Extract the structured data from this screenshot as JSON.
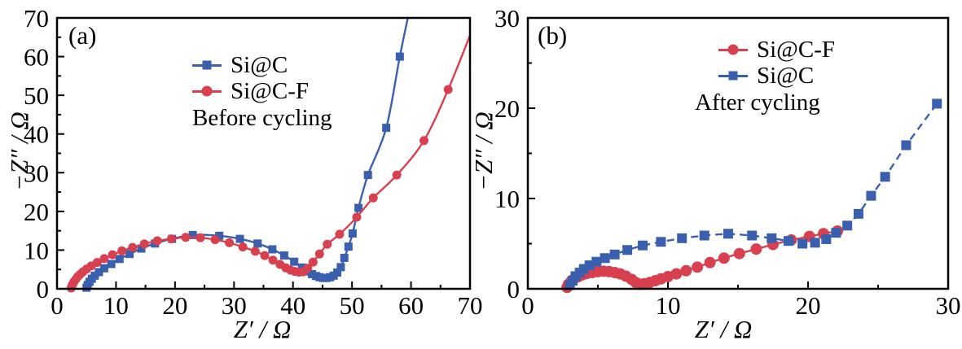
{
  "chart_data": [
    {
      "type": "scatter-line",
      "panel_label": "(a)",
      "xlabel": "Z′ / Ω",
      "ylabel": "−Z″ / Ω",
      "xlim": [
        0,
        70
      ],
      "ylim": [
        0,
        70
      ],
      "xticks": [
        0,
        10,
        20,
        30,
        40,
        50,
        60,
        70
      ],
      "yticks": [
        0,
        10,
        20,
        30,
        40,
        50,
        60,
        70
      ],
      "minor_tick_step": 5,
      "grid": false,
      "legend_position": "top-center-inside",
      "legend_note": "Before cycling",
      "series": [
        {
          "name": "Si@C",
          "marker": "square",
          "marker_size": 10,
          "line": "solid",
          "color": "#3a5fae",
          "points": [
            [
              5.0,
              0.3
            ],
            [
              5.2,
              1.0
            ],
            [
              5.5,
              1.8
            ],
            [
              5.9,
              2.6
            ],
            [
              6.4,
              3.4
            ],
            [
              7.1,
              4.3
            ],
            [
              8.0,
              5.3
            ],
            [
              9.2,
              6.4
            ],
            [
              10.6,
              7.7
            ],
            [
              12.3,
              9.0
            ],
            [
              14.3,
              10.4
            ],
            [
              16.6,
              11.7
            ],
            [
              19.5,
              12.9
            ],
            [
              23.0,
              13.9
            ],
            [
              27.5,
              13.7
            ],
            [
              31.0,
              12.9
            ],
            [
              34.0,
              11.7
            ],
            [
              36.5,
              10.2
            ],
            [
              38.5,
              8.6
            ],
            [
              40.2,
              7.0
            ],
            [
              41.5,
              5.5
            ],
            [
              42.4,
              4.5
            ],
            [
              43.2,
              3.8
            ],
            [
              43.9,
              3.3
            ],
            [
              44.5,
              3.0
            ],
            [
              45.1,
              2.8
            ],
            [
              45.7,
              2.8
            ],
            [
              46.3,
              3.0
            ],
            [
              46.9,
              3.4
            ],
            [
              47.5,
              4.2
            ],
            [
              48.1,
              5.6
            ],
            [
              48.7,
              8.0
            ],
            [
              49.4,
              10.9
            ],
            [
              50.1,
              14.3
            ],
            [
              51.1,
              20.9
            ],
            [
              52.7,
              29.4
            ],
            [
              55.8,
              41.6
            ],
            [
              58.1,
              60.0
            ]
          ],
          "line_tail": [
            [
              59.6,
              71.0
            ]
          ]
        },
        {
          "name": "Si@C-F",
          "marker": "circle",
          "marker_size": 11,
          "line": "solid",
          "color": "#d8404f",
          "points": [
            [
              2.4,
              0.2
            ],
            [
              2.5,
              0.7
            ],
            [
              2.7,
              1.3
            ],
            [
              2.9,
              1.9
            ],
            [
              3.2,
              2.5
            ],
            [
              3.5,
              3.1
            ],
            [
              3.9,
              3.7
            ],
            [
              4.4,
              4.4
            ],
            [
              5.0,
              5.1
            ],
            [
              5.8,
              5.9
            ],
            [
              6.8,
              6.8
            ],
            [
              8.0,
              7.8
            ],
            [
              9.4,
              8.8
            ],
            [
              11.0,
              9.8
            ],
            [
              12.8,
              10.7
            ],
            [
              14.8,
              11.6
            ],
            [
              17.0,
              12.4
            ],
            [
              19.4,
              12.9
            ],
            [
              21.8,
              13.3
            ],
            [
              24.3,
              13.2
            ],
            [
              26.8,
              12.7
            ],
            [
              29.2,
              11.9
            ],
            [
              31.5,
              10.8
            ],
            [
              33.6,
              9.7
            ],
            [
              35.2,
              8.6
            ],
            [
              36.6,
              7.4
            ],
            [
              37.8,
              6.3
            ],
            [
              38.8,
              5.4
            ],
            [
              39.6,
              4.8
            ],
            [
              40.3,
              4.5
            ],
            [
              41.0,
              4.3
            ],
            [
              41.7,
              4.4
            ],
            [
              42.5,
              5.3
            ],
            [
              43.4,
              6.9
            ],
            [
              44.5,
              9.0
            ],
            [
              45.8,
              11.5
            ],
            [
              47.9,
              14.1
            ],
            [
              50.8,
              18.5
            ],
            [
              53.6,
              23.5
            ],
            [
              57.6,
              29.4
            ],
            [
              62.2,
              38.3
            ],
            [
              66.3,
              51.5
            ]
          ],
          "line_tail": [
            [
              70.0,
              65.5
            ]
          ]
        }
      ]
    },
    {
      "type": "scatter-line",
      "panel_label": "(b)",
      "xlabel": "Z′ / Ω",
      "ylabel": "−Z″ / Ω",
      "xlim": [
        0,
        30
      ],
      "ylim": [
        0,
        30
      ],
      "xticks": [
        0,
        10,
        20,
        30
      ],
      "yticks": [
        0,
        10,
        20,
        30
      ],
      "minor_tick_step": 5,
      "grid": false,
      "legend_position": "top-right-inside",
      "legend_note": "After cycling",
      "series": [
        {
          "name": "Si@C-F",
          "marker": "circle",
          "marker_size": 14,
          "line": "solid",
          "color": "#d8404f",
          "points": [
            [
              2.8,
              0.15
            ],
            [
              2.9,
              0.5
            ],
            [
              3.1,
              0.85
            ],
            [
              3.3,
              1.1
            ],
            [
              3.6,
              1.35
            ],
            [
              3.9,
              1.55
            ],
            [
              4.2,
              1.7
            ],
            [
              4.6,
              1.8
            ],
            [
              5.0,
              1.9
            ],
            [
              5.4,
              1.95
            ],
            [
              5.8,
              1.9
            ],
            [
              6.2,
              1.8
            ],
            [
              6.6,
              1.65
            ],
            [
              7.0,
              1.4
            ],
            [
              7.4,
              1.05
            ],
            [
              7.7,
              0.7
            ],
            [
              8.0,
              0.5
            ],
            [
              8.3,
              0.55
            ],
            [
              8.7,
              0.7
            ],
            [
              9.1,
              0.9
            ],
            [
              9.5,
              1.1
            ],
            [
              10.0,
              1.35
            ],
            [
              10.6,
              1.65
            ],
            [
              11.3,
              2.0
            ],
            [
              12.1,
              2.4
            ],
            [
              13.0,
              2.9
            ],
            [
              14.0,
              3.4
            ],
            [
              15.1,
              3.9
            ],
            [
              16.3,
              4.4
            ],
            [
              17.5,
              4.9
            ],
            [
              18.8,
              5.4
            ],
            [
              20.1,
              5.8
            ],
            [
              21.1,
              6.1
            ],
            [
              22.1,
              6.4
            ]
          ]
        },
        {
          "name": "Si@C",
          "marker": "square",
          "marker_size": 12,
          "line": "dashed",
          "color": "#3a5fae",
          "points": [
            [
              3.0,
              0.4
            ],
            [
              3.2,
              0.9
            ],
            [
              3.4,
              1.4
            ],
            [
              3.7,
              1.8
            ],
            [
              4.0,
              2.2
            ],
            [
              4.4,
              2.6
            ],
            [
              4.9,
              3.0
            ],
            [
              5.5,
              3.4
            ],
            [
              6.2,
              3.8
            ],
            [
              7.1,
              4.3
            ],
            [
              8.2,
              4.8
            ],
            [
              9.5,
              5.2
            ],
            [
              11.0,
              5.6
            ],
            [
              12.6,
              5.9
            ],
            [
              14.3,
              6.1
            ],
            [
              16.0,
              5.9
            ],
            [
              17.4,
              5.6
            ],
            [
              18.6,
              5.3
            ],
            [
              19.6,
              5.0
            ],
            [
              20.5,
              5.1
            ],
            [
              21.3,
              5.5
            ],
            [
              22.0,
              6.2
            ],
            [
              22.8,
              7.0
            ],
            [
              23.6,
              8.3
            ],
            [
              24.5,
              10.3
            ],
            [
              25.5,
              12.4
            ],
            [
              27.0,
              15.9
            ],
            [
              29.2,
              20.5
            ]
          ]
        }
      ]
    }
  ]
}
